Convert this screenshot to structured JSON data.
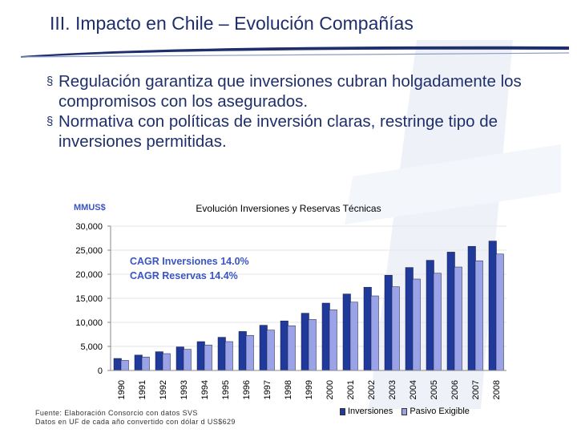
{
  "header": {
    "title": "III. Impacto en Chile – Evolución Compañías"
  },
  "bullets": [
    {
      "mark": "§",
      "text": "Regulación garantiza que inversiones cubran holgadamente los compromisos con los asegurados."
    },
    {
      "mark": "§",
      "text": "Normativa con políticas de inversión claras, restringe tipo de inversiones permitidas."
    }
  ],
  "colors": {
    "title": "#1f2f6b",
    "inversiones": "#1f3a9a",
    "pasivo": "#9aa3e8",
    "cagr": "#3a55c4",
    "unit": "#3a55c4"
  },
  "chart_data": {
    "type": "bar",
    "title": "Evolución Inversiones y Reservas Técnicas",
    "unit_label": "MMUS$",
    "categories": [
      "1990",
      "1991",
      "1992",
      "1993",
      "1994",
      "1995",
      "1996",
      "1997",
      "1998",
      "1999",
      "2000",
      "2001",
      "2002",
      "2003",
      "2004",
      "2005",
      "2006",
      "2007",
      "2008"
    ],
    "series": [
      {
        "name": "Inversiones",
        "values": [
          2500,
          3200,
          3900,
          4900,
          6000,
          6900,
          8100,
          9400,
          10300,
          11900,
          14000,
          15900,
          17300,
          19800,
          21400,
          22900,
          24600,
          25800,
          26900
        ]
      },
      {
        "name": "Pasivo Exigible",
        "values": [
          2100,
          2800,
          3500,
          4400,
          5300,
          6000,
          7300,
          8400,
          9300,
          10600,
          12600,
          14200,
          15500,
          17400,
          19000,
          20200,
          21500,
          22800,
          24200
        ]
      }
    ],
    "yticks": [
      "30,000",
      "25,000",
      "20,000",
      "15,000",
      "10,000",
      "5,000",
      "0"
    ],
    "ylim": [
      0,
      30000
    ],
    "annotations": [
      "CAGR Inversiones 14.0%",
      "CAGR Reservas 14.4%"
    ]
  },
  "footer": {
    "source_line1": "Fuente: Elaboración Consorcio con datos SVS",
    "source_line2": "Datos en UF de cada año convertido con dólar d US$629"
  }
}
